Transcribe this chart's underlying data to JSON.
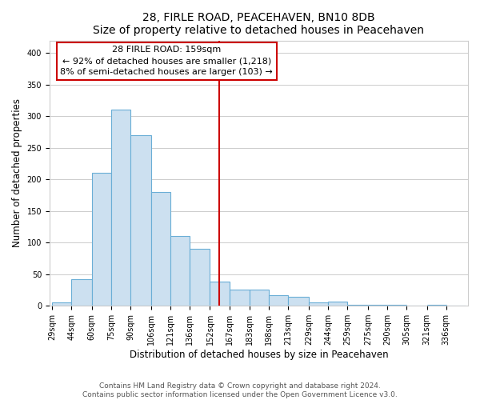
{
  "title": "28, FIRLE ROAD, PEACEHAVEN, BN10 8DB",
  "subtitle": "Size of property relative to detached houses in Peacehaven",
  "xlabel": "Distribution of detached houses by size in Peacehaven",
  "ylabel": "Number of detached properties",
  "bin_labels": [
    "29sqm",
    "44sqm",
    "60sqm",
    "75sqm",
    "90sqm",
    "106sqm",
    "121sqm",
    "136sqm",
    "152sqm",
    "167sqm",
    "183sqm",
    "198sqm",
    "213sqm",
    "229sqm",
    "244sqm",
    "259sqm",
    "275sqm",
    "290sqm",
    "305sqm",
    "321sqm",
    "336sqm"
  ],
  "bin_edges": [
    29,
    44,
    60,
    75,
    90,
    106,
    121,
    136,
    152,
    167,
    183,
    198,
    213,
    229,
    244,
    259,
    275,
    290,
    305,
    321,
    336,
    351
  ],
  "bar_heights": [
    5,
    42,
    210,
    310,
    270,
    180,
    110,
    90,
    38,
    25,
    25,
    17,
    14,
    5,
    6,
    2,
    2,
    1,
    0,
    1,
    0
  ],
  "bar_color": "#cce0f0",
  "bar_edge_color": "#6aaed6",
  "reference_line_x": 159,
  "reference_line_color": "#cc0000",
  "annotation_title": "28 FIRLE ROAD: 159sqm",
  "annotation_line1": "← 92% of detached houses are smaller (1,218)",
  "annotation_line2": "8% of semi-detached houses are larger (103) →",
  "annotation_box_color": "#ffffff",
  "annotation_box_edge_color": "#cc0000",
  "ylim": [
    0,
    420
  ],
  "yticks": [
    0,
    50,
    100,
    150,
    200,
    250,
    300,
    350,
    400
  ],
  "footer_line1": "Contains HM Land Registry data © Crown copyright and database right 2024.",
  "footer_line2": "Contains public sector information licensed under the Open Government Licence v3.0.",
  "background_color": "#ffffff",
  "grid_color": "#cccccc",
  "title_fontsize": 10,
  "subtitle_fontsize": 9,
  "axis_label_fontsize": 8.5,
  "tick_fontsize": 7,
  "annotation_fontsize": 8,
  "footer_fontsize": 6.5
}
